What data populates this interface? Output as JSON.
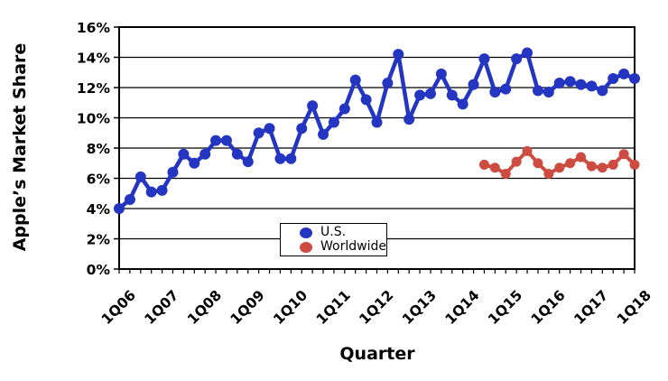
{
  "chart_data": {
    "type": "line",
    "title": "",
    "xlabel": "Quarter",
    "ylabel": "Apple’s Market Share",
    "ylim": [
      0,
      16
    ],
    "ytick_step": 2,
    "ytick_labels": [
      "0%",
      "2%",
      "4%",
      "6%",
      "8%",
      "10%",
      "12%",
      "14%",
      "16%"
    ],
    "xtick_label_every": 4,
    "grid": true,
    "legend_position": "inside-bottom-center",
    "categories": [
      "1Q06",
      "2Q06",
      "3Q06",
      "4Q06",
      "1Q07",
      "2Q07",
      "3Q07",
      "4Q07",
      "1Q08",
      "2Q08",
      "3Q08",
      "4Q08",
      "1Q09",
      "2Q09",
      "3Q09",
      "4Q09",
      "1Q10",
      "2Q10",
      "3Q10",
      "4Q10",
      "1Q11",
      "2Q11",
      "3Q11",
      "4Q11",
      "1Q12",
      "2Q12",
      "3Q12",
      "4Q12",
      "1Q13",
      "2Q13",
      "3Q13",
      "4Q13",
      "1Q14",
      "2Q14",
      "3Q14",
      "4Q14",
      "1Q15",
      "2Q15",
      "3Q15",
      "4Q15",
      "1Q16",
      "2Q16",
      "3Q16",
      "4Q16",
      "1Q17",
      "2Q17",
      "3Q17",
      "4Q17",
      "1Q18"
    ],
    "series": [
      {
        "name": "U.S.",
        "color": "#2435c2",
        "values": [
          4.0,
          4.6,
          6.1,
          5.1,
          5.2,
          6.4,
          7.6,
          7.0,
          7.6,
          8.5,
          8.5,
          7.6,
          7.1,
          9.0,
          9.3,
          7.3,
          7.3,
          9.3,
          10.8,
          8.9,
          9.7,
          10.6,
          12.5,
          11.2,
          9.7,
          12.3,
          14.2,
          9.9,
          11.5,
          11.6,
          12.9,
          11.5,
          10.9,
          12.2,
          13.9,
          11.7,
          11.9,
          13.9,
          14.3,
          11.8,
          11.7,
          12.3,
          12.4,
          12.2,
          12.1,
          11.8,
          12.6,
          12.9,
          12.6
        ]
      },
      {
        "name": "Worldwide",
        "color": "#cd4b41",
        "values": [
          null,
          null,
          null,
          null,
          null,
          null,
          null,
          null,
          null,
          null,
          null,
          null,
          null,
          null,
          null,
          null,
          null,
          null,
          null,
          null,
          null,
          null,
          null,
          null,
          null,
          null,
          null,
          null,
          null,
          null,
          null,
          null,
          null,
          null,
          6.9,
          6.7,
          6.3,
          7.1,
          7.8,
          7.0,
          6.3,
          6.7,
          7.0,
          7.4,
          6.8,
          6.7,
          6.9,
          7.6,
          6.9
        ]
      }
    ]
  }
}
